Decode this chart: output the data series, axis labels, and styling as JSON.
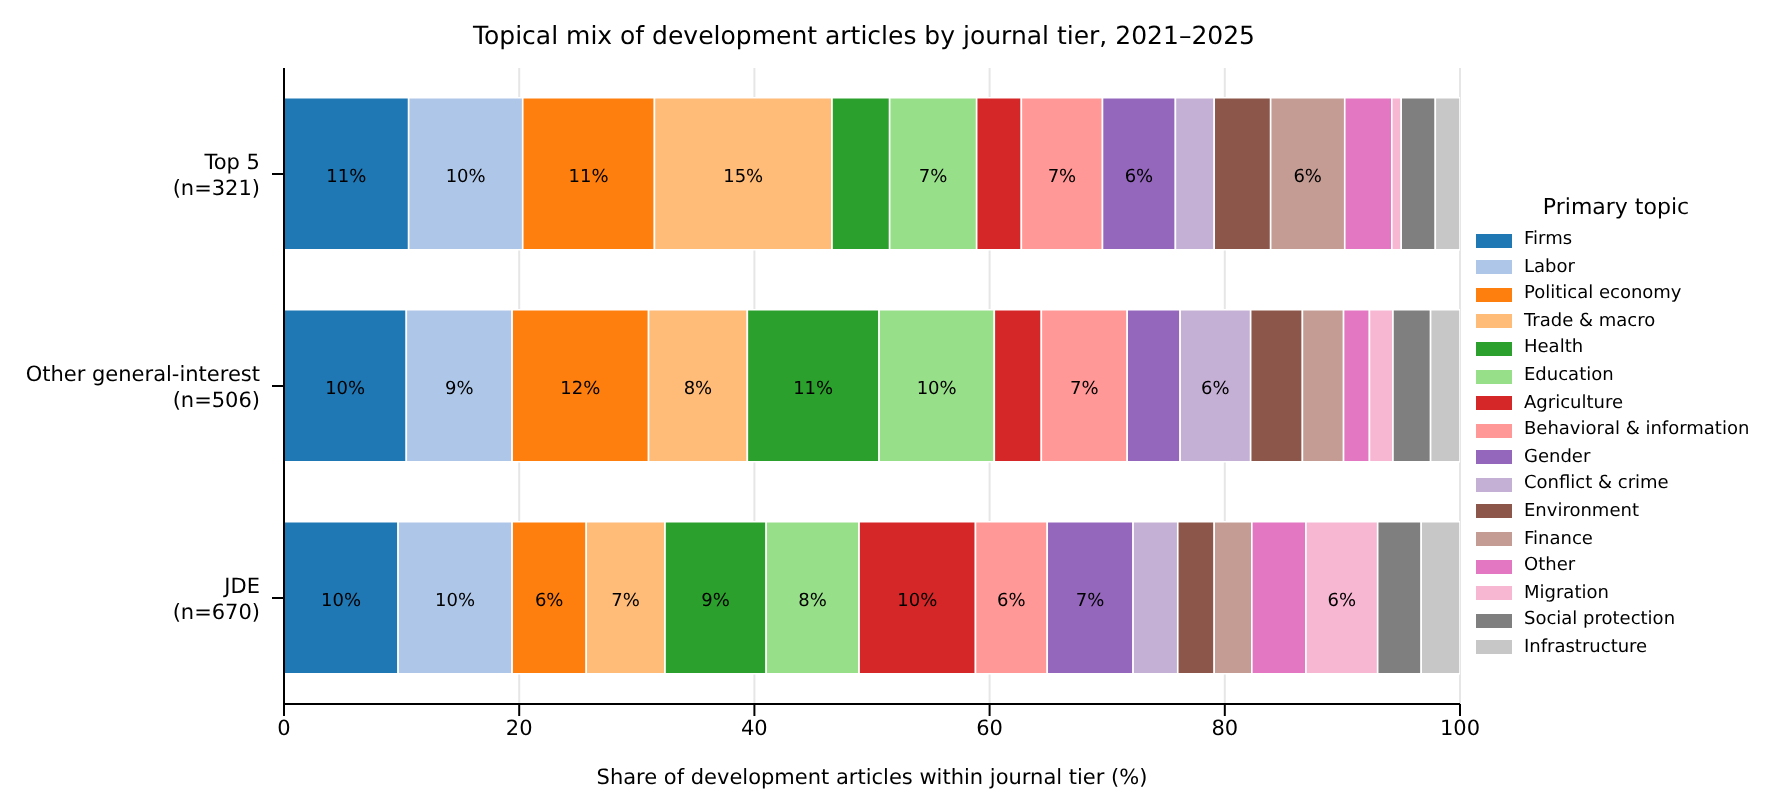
{
  "chart_data": {
    "type": "bar",
    "orientation": "horizontal",
    "stacked": true,
    "title": "Topical mix of development articles by journal tier, 2021–2025",
    "xlabel": "Share of development articles within journal tier (%)",
    "legend_title": "Primary topic",
    "legend": "right",
    "grid": "x",
    "categories": [
      "Top 5\n(n=321)",
      "Other general-interest\n(n=506)",
      "JDE\n(n=670)"
    ],
    "xlim": [
      0,
      100
    ],
    "xticks": [
      0,
      20,
      40,
      60,
      80,
      100
    ],
    "series": [
      {
        "name": "Firms",
        "color": "#1f77b4",
        "values": [
          10.6,
          10.4,
          9.7
        ],
        "value_labels": [
          "11%",
          "10%",
          "10%"
        ]
      },
      {
        "name": "Labor",
        "color": "#aec7e8",
        "values": [
          9.7,
          9.0,
          9.7
        ],
        "value_labels": [
          "10%",
          "9%",
          "10%"
        ]
      },
      {
        "name": "Political economy",
        "color": "#ff7f0e",
        "values": [
          11.2,
          11.6,
          6.3
        ],
        "value_labels": [
          "11%",
          "12%",
          "6%"
        ]
      },
      {
        "name": "Trade & macro",
        "color": "#ffbb78",
        "values": [
          15.1,
          8.4,
          6.7
        ],
        "value_labels": [
          "15%",
          "8%",
          "7%"
        ]
      },
      {
        "name": "Health",
        "color": "#2ca02c",
        "values": [
          4.9,
          11.2,
          8.6
        ],
        "value_labels": [
          null,
          "11%",
          "9%"
        ]
      },
      {
        "name": "Education",
        "color": "#98df8a",
        "values": [
          7.4,
          9.8,
          7.9
        ],
        "value_labels": [
          "7%",
          "10%",
          "8%"
        ]
      },
      {
        "name": "Agriculture",
        "color": "#d62728",
        "values": [
          3.8,
          4.0,
          9.9
        ],
        "value_labels": [
          null,
          null,
          "10%"
        ]
      },
      {
        "name": "Behavioral & information",
        "color": "#ff9896",
        "values": [
          6.9,
          7.3,
          6.1
        ],
        "value_labels": [
          "7%",
          "7%",
          "6%"
        ]
      },
      {
        "name": "Gender",
        "color": "#9467bd",
        "values": [
          6.2,
          4.5,
          7.3
        ],
        "value_labels": [
          "6%",
          null,
          "7%"
        ]
      },
      {
        "name": "Conflict & crime",
        "color": "#c5b0d5",
        "values": [
          3.3,
          6.0,
          3.8
        ],
        "value_labels": [
          null,
          "6%",
          null
        ]
      },
      {
        "name": "Environment",
        "color": "#8c564b",
        "values": [
          4.8,
          4.4,
          3.1
        ],
        "value_labels": [
          null,
          null,
          null
        ]
      },
      {
        "name": "Finance",
        "color": "#c49c94",
        "values": [
          6.3,
          3.5,
          3.2
        ],
        "value_labels": [
          "6%",
          null,
          null
        ]
      },
      {
        "name": "Other",
        "color": "#e377c2",
        "values": [
          4.0,
          2.2,
          4.6
        ],
        "value_labels": [
          null,
          null,
          null
        ]
      },
      {
        "name": "Migration",
        "color": "#f7b6d2",
        "values": [
          0.8,
          2.0,
          6.1
        ],
        "value_labels": [
          null,
          null,
          "6%"
        ]
      },
      {
        "name": "Social protection",
        "color": "#7f7f7f",
        "values": [
          2.9,
          3.2,
          3.7
        ],
        "value_labels": [
          null,
          null,
          null
        ]
      },
      {
        "name": "Infrastructure",
        "color": "#c7c7c7",
        "values": [
          2.2,
          2.5,
          3.3
        ],
        "value_labels": [
          null,
          null,
          null
        ]
      }
    ]
  }
}
